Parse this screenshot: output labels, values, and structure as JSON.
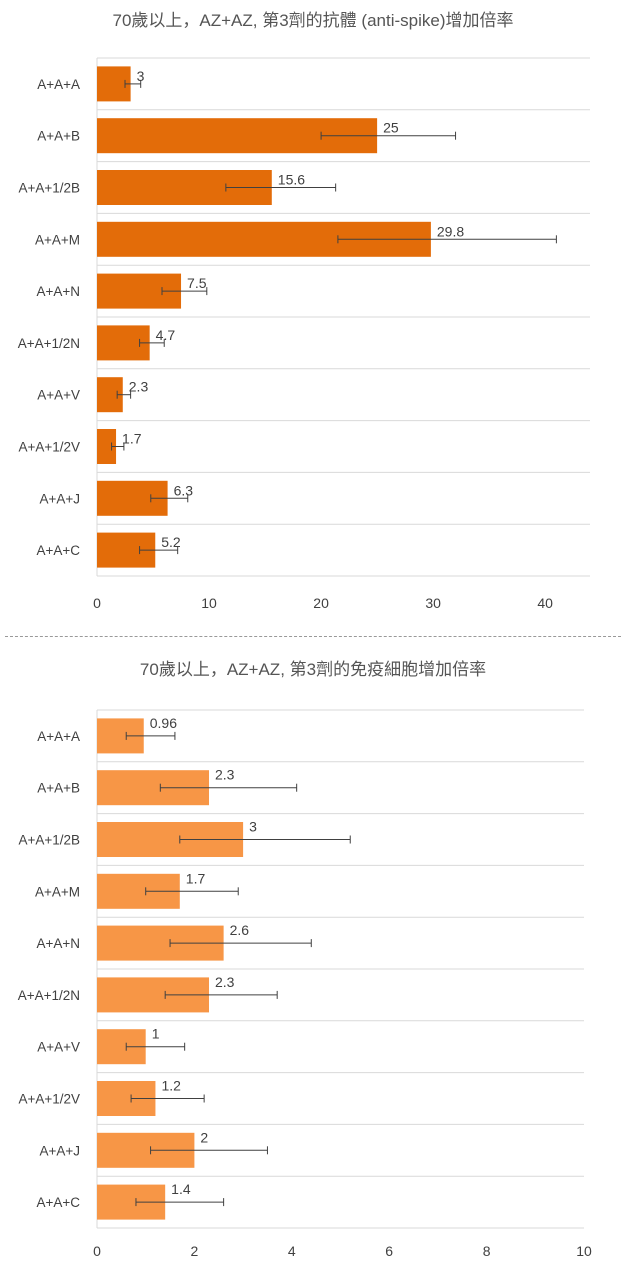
{
  "charts": [
    {
      "title": "70歲以上，AZ+AZ, 第3劑的抗體 (anti-spike)增加倍率"
    },
    {
      "title": "70歲以上，AZ+AZ, 第3劑的免疫細胞增加倍率"
    }
  ],
  "chart_data": [
    {
      "type": "bar",
      "orientation": "horizontal",
      "title": "70歲以上，AZ+AZ, 第3劑的抗體 (anti-spike)增加倍率",
      "categories": [
        "A+A+A",
        "A+A+B",
        "A+A+1/2B",
        "A+A+M",
        "A+A+N",
        "A+A+1/2N",
        "A+A+V",
        "A+A+1/2V",
        "A+A+J",
        "A+A+C"
      ],
      "values": [
        3,
        25,
        15.6,
        29.8,
        7.5,
        4.7,
        2.3,
        1.7,
        6.3,
        5.2
      ],
      "labels": [
        "3",
        "25",
        "15.6",
        "29.8",
        "7.5",
        "4.7",
        "2.3",
        "1.7",
        "6.3",
        "5.2"
      ],
      "error_low": [
        2.5,
        20,
        11.5,
        21.5,
        5.8,
        3.8,
        1.8,
        1.3,
        4.8,
        3.8
      ],
      "error_high": [
        3.9,
        32,
        21.3,
        41,
        9.8,
        6,
        3,
        2.4,
        8.1,
        7.2
      ],
      "xlim": [
        0,
        44
      ],
      "xticks": [
        0,
        10,
        20,
        30,
        40
      ],
      "xtick_labels": [
        "0",
        "10",
        "20",
        "30",
        "40"
      ],
      "color": "#e36c09",
      "error_bars": true,
      "grid": "horizontal separators between categories"
    },
    {
      "type": "bar",
      "orientation": "horizontal",
      "title": "70歲以上，AZ+AZ, 第3劑的免疫細胞增加倍率",
      "categories": [
        "A+A+A",
        "A+A+B",
        "A+A+1/2B",
        "A+A+M",
        "A+A+N",
        "A+A+1/2N",
        "A+A+V",
        "A+A+1/2V",
        "A+A+J",
        "A+A+C"
      ],
      "values": [
        0.96,
        2.3,
        3,
        1.7,
        2.6,
        2.3,
        1,
        1.2,
        2,
        1.4
      ],
      "labels": [
        "0.96",
        "2.3",
        "3",
        "1.7",
        "2.6",
        "2.3",
        "1",
        "1.2",
        "2",
        "1.4"
      ],
      "error_low": [
        0.6,
        1.3,
        1.7,
        1.0,
        1.5,
        1.4,
        0.6,
        0.7,
        1.1,
        0.8
      ],
      "error_high": [
        1.6,
        4.1,
        5.2,
        2.9,
        4.4,
        3.7,
        1.8,
        2.2,
        3.5,
        2.6
      ],
      "xlim": [
        0,
        10
      ],
      "xticks": [
        0,
        2,
        4,
        6,
        8,
        10
      ],
      "xtick_labels": [
        "0",
        "2",
        "4",
        "6",
        "8",
        "10"
      ],
      "color": "#f79646",
      "error_bars": true,
      "grid": "horizontal separators between categories"
    }
  ]
}
